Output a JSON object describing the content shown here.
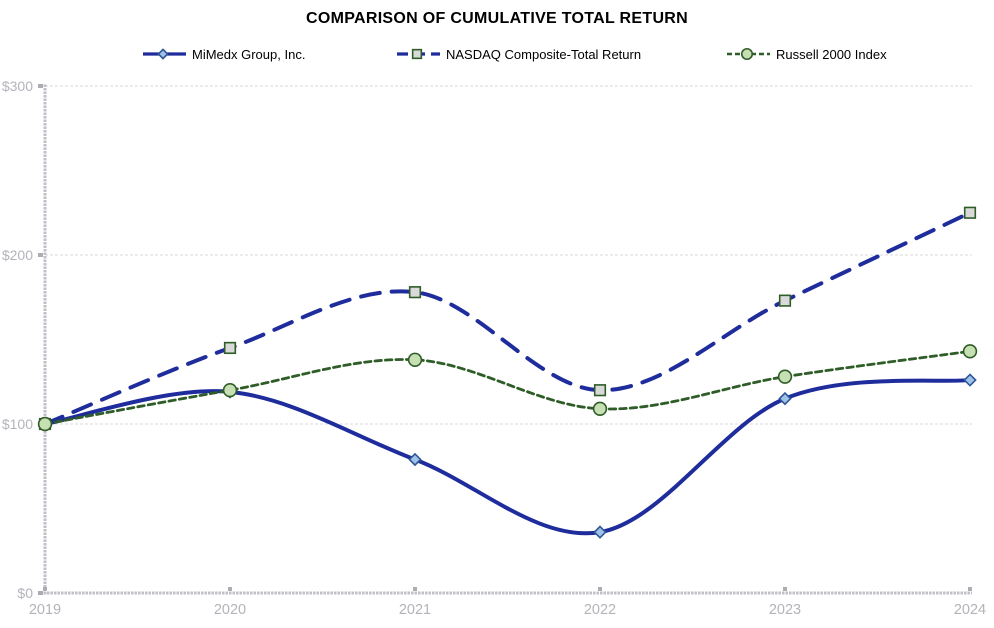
{
  "title": "COMPARISON OF CUMULATIVE TOTAL RETURN",
  "chart_data": {
    "type": "line",
    "categories": [
      "2019",
      "2020",
      "2021",
      "2022",
      "2023",
      "2024"
    ],
    "y_ticks": [
      0,
      100,
      200,
      300
    ],
    "y_tick_labels": [
      "$0",
      "$100",
      "$200",
      "$300"
    ],
    "ylim": [
      0,
      300
    ],
    "grid": "horizontal-only",
    "legend_position": "top",
    "curve": "smooth",
    "series": [
      {
        "id": "mimedx",
        "name": "MiMedx Group, Inc.",
        "values": [
          100,
          119,
          79,
          36,
          115,
          126
        ],
        "line_style": "solid",
        "marker": "diamond",
        "line_color": "#1F2C9C",
        "marker_fill": "#9DC3E6",
        "marker_stroke": "#2F5597"
      },
      {
        "id": "nasdaq",
        "name": "NASDAQ Composite-Total Return",
        "values": [
          100,
          145,
          178,
          120,
          173,
          225
        ],
        "line_style": "long-dash",
        "marker": "square",
        "line_color": "#1F2C9C",
        "marker_fill": "#D9D9D9",
        "marker_stroke": "#2F5D28"
      },
      {
        "id": "russell",
        "name": "Russell 2000 Index",
        "values": [
          100,
          120,
          138,
          109,
          128,
          143
        ],
        "line_style": "short-dash",
        "marker": "circle",
        "line_color": "#2F5D28",
        "marker_fill": "#C6E0B4",
        "marker_stroke": "#2F5D28"
      }
    ]
  },
  "style": {
    "background": "#FFFFFF",
    "axis_color": "#C0C0C6",
    "tick_mark_color": "#ACACB2",
    "grid_color": "#D8D8DA",
    "tick_label_color": "#B3B3BA",
    "title_color": "#000000",
    "legend_text_color": "#000000"
  }
}
